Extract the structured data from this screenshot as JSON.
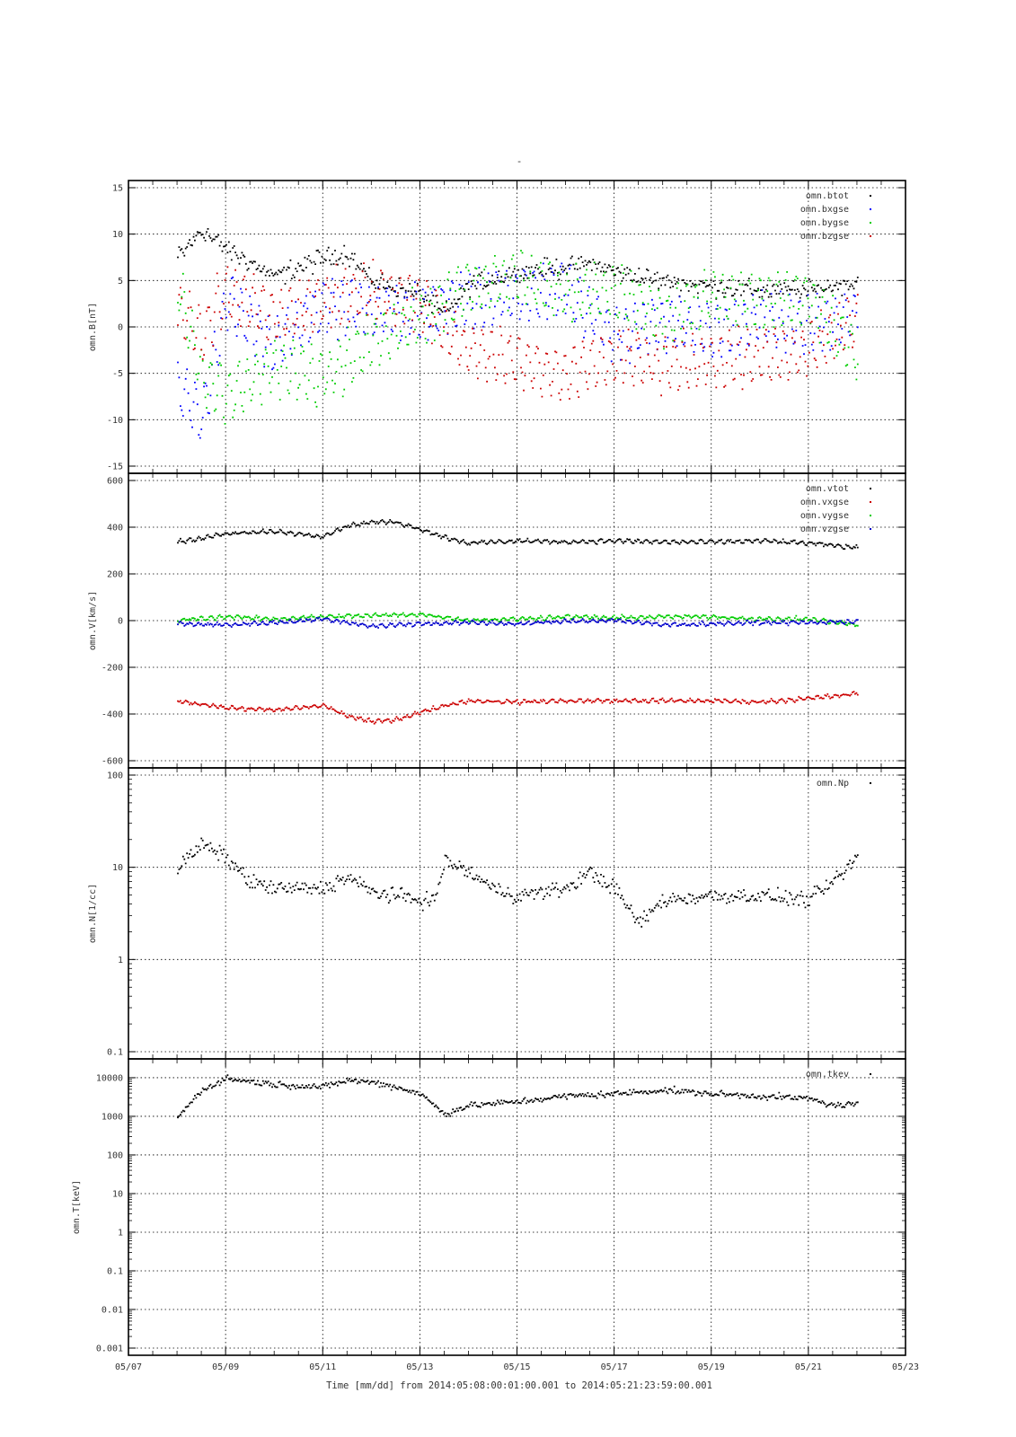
{
  "figure": {
    "top_mark": "-",
    "x_axis_label": "Time [mm/dd]  from 2014:05:08:00:01:00.001  to  2014:05:21:23:59:00.001",
    "x_ticks": [
      "05/07",
      "05/09",
      "05/11",
      "05/13",
      "05/15",
      "05/17",
      "05/19",
      "05/21",
      "05/23"
    ]
  },
  "chart_data": [
    {
      "type": "scatter",
      "ylabel": "omn.B[nT]",
      "ylim": [
        -15,
        15
      ],
      "yscale": "linear",
      "y_ticks": [
        -15,
        -10,
        -5,
        0,
        5,
        10,
        15
      ],
      "y_tick_labels": [
        "-15",
        "-10",
        "-5",
        "0",
        "5",
        "10",
        "15"
      ],
      "xlim": [
        "05/07",
        "05/23"
      ],
      "grid": true,
      "legend_position": "top-right",
      "series": [
        {
          "name": "omn.btot",
          "color": "#000000",
          "points": [
            [
              "05/08",
              7.5
            ],
            [
              "05/08.5",
              10.5
            ],
            [
              "05/09",
              8.5
            ],
            [
              "05/10",
              5.5
            ],
            [
              "05/11",
              7.5
            ],
            [
              "05/11.5",
              8.0
            ],
            [
              "05/12",
              5.0
            ],
            [
              "05/13",
              3.5
            ],
            [
              "05/13.5",
              1.5
            ],
            [
              "05/14",
              4.5
            ],
            [
              "05/15",
              6.0
            ],
            [
              "05/16",
              6.5
            ],
            [
              "05/16.5",
              7.0
            ],
            [
              "05/17",
              6.0
            ],
            [
              "05/18",
              5.0
            ],
            [
              "05/19",
              4.5
            ],
            [
              "05/20",
              4.0
            ],
            [
              "05/21",
              4.0
            ],
            [
              "05/21.5",
              4.5
            ],
            [
              "05/22",
              5.0
            ]
          ]
        },
        {
          "name": "omn.bxgse",
          "color": "#0000ff",
          "points": [
            [
              "05/08",
              -6.0
            ],
            [
              "05/08.5",
              -10.0
            ],
            [
              "05/09",
              3.0
            ],
            [
              "05/10",
              -2.0
            ],
            [
              "05/11",
              2.5
            ],
            [
              "05/12",
              2.0
            ],
            [
              "05/13",
              1.5
            ],
            [
              "05/14",
              3.0
            ],
            [
              "05/15",
              3.5
            ],
            [
              "05/16",
              4.0
            ],
            [
              "05/17",
              -1.0
            ],
            [
              "05/18",
              0.5
            ],
            [
              "05/19",
              -0.5
            ],
            [
              "05/20",
              1.0
            ],
            [
              "05/21",
              0.0
            ],
            [
              "05/22",
              1.5
            ]
          ]
        },
        {
          "name": "omn.bygse",
          "color": "#00cc00",
          "points": [
            [
              "05/08",
              4.5
            ],
            [
              "05/08.5",
              -5.0
            ],
            [
              "05/09",
              -7.5
            ],
            [
              "05/10",
              -4.0
            ],
            [
              "05/11",
              -5.5
            ],
            [
              "05/12",
              -1.5
            ],
            [
              "05/13",
              1.0
            ],
            [
              "05/14",
              4.5
            ],
            [
              "05/15",
              5.5
            ],
            [
              "05/16",
              3.5
            ],
            [
              "05/17",
              4.0
            ],
            [
              "05/18",
              1.0
            ],
            [
              "05/19",
              3.5
            ],
            [
              "05/20",
              3.0
            ],
            [
              "05/21",
              3.0
            ],
            [
              "05/22",
              -3.0
            ]
          ]
        },
        {
          "name": "omn.bzgse",
          "color": "#cc0000",
          "points": [
            [
              "05/08",
              2.0
            ],
            [
              "05/08.5",
              -1.0
            ],
            [
              "05/09",
              4.0
            ],
            [
              "05/10",
              1.0
            ],
            [
              "05/11",
              3.0
            ],
            [
              "05/12",
              4.0
            ],
            [
              "05/13",
              2.5
            ],
            [
              "05/14",
              -2.5
            ],
            [
              "05/15",
              -3.5
            ],
            [
              "05/16",
              -5.0
            ],
            [
              "05/17",
              -3.0
            ],
            [
              "05/18",
              -4.0
            ],
            [
              "05/19",
              -3.5
            ],
            [
              "05/20",
              -3.0
            ],
            [
              "05/21",
              -2.5
            ],
            [
              "05/22",
              1.0
            ]
          ]
        }
      ]
    },
    {
      "type": "scatter",
      "ylabel": "omn.V[km/s]",
      "ylim": [
        -600,
        600
      ],
      "yscale": "linear",
      "y_ticks": [
        -600,
        -400,
        -200,
        0,
        200,
        400,
        600
      ],
      "y_tick_labels": [
        "-600",
        "-400",
        "-200",
        "0",
        "200",
        "400",
        "600"
      ],
      "xlim": [
        "05/07",
        "05/23"
      ],
      "grid": true,
      "legend_position": "top-right",
      "series": [
        {
          "name": "omn.vtot",
          "color": "#000000",
          "points": [
            [
              "05/08",
              340
            ],
            [
              "05/09",
              375
            ],
            [
              "05/10",
              385
            ],
            [
              "05/11",
              365
            ],
            [
              "05/11.5",
              410
            ],
            [
              "05/12",
              425
            ],
            [
              "05/12.5",
              425
            ],
            [
              "05/13",
              395
            ],
            [
              "05/13.5",
              360
            ],
            [
              "05/14",
              335
            ],
            [
              "05/15",
              345
            ],
            [
              "05/16",
              340
            ],
            [
              "05/17",
              345
            ],
            [
              "05/18",
              340
            ],
            [
              "05/19",
              340
            ],
            [
              "05/20",
              345
            ],
            [
              "05/21",
              335
            ],
            [
              "05/22",
              315
            ]
          ]
        },
        {
          "name": "omn.vxgse",
          "color": "#cc0000",
          "points": [
            [
              "05/08",
              -340
            ],
            [
              "05/09",
              -370
            ],
            [
              "05/10",
              -380
            ],
            [
              "05/11",
              -360
            ],
            [
              "05/11.5",
              -405
            ],
            [
              "05/12",
              -430
            ],
            [
              "05/12.5",
              -420
            ],
            [
              "05/13",
              -390
            ],
            [
              "05/13.5",
              -360
            ],
            [
              "05/14",
              -340
            ],
            [
              "05/15",
              -345
            ],
            [
              "05/16",
              -340
            ],
            [
              "05/17",
              -340
            ],
            [
              "05/18",
              -340
            ],
            [
              "05/19",
              -340
            ],
            [
              "05/20",
              -345
            ],
            [
              "05/21",
              -330
            ],
            [
              "05/22",
              -310
            ]
          ]
        },
        {
          "name": "omn.vygse",
          "color": "#00cc00",
          "points": [
            [
              "05/08",
              5
            ],
            [
              "05/09",
              20
            ],
            [
              "05/10",
              10
            ],
            [
              "05/11",
              20
            ],
            [
              "05/12",
              25
            ],
            [
              "05/13",
              30
            ],
            [
              "05/14",
              5
            ],
            [
              "05/15",
              10
            ],
            [
              "05/16",
              20
            ],
            [
              "05/17",
              15
            ],
            [
              "05/18",
              20
            ],
            [
              "05/19",
              20
            ],
            [
              "05/20",
              10
            ],
            [
              "05/21",
              10
            ],
            [
              "05/22",
              -15
            ]
          ]
        },
        {
          "name": "omn.vzgse",
          "color": "#0000cc",
          "points": [
            [
              "05/08",
              -10
            ],
            [
              "05/09",
              -15
            ],
            [
              "05/10",
              -5
            ],
            [
              "05/11",
              10
            ],
            [
              "05/12",
              -20
            ],
            [
              "05/13",
              -10
            ],
            [
              "05/14",
              -5
            ],
            [
              "05/15",
              -10
            ],
            [
              "05/16",
              0
            ],
            [
              "05/17",
              5
            ],
            [
              "05/18",
              -15
            ],
            [
              "05/19",
              -10
            ],
            [
              "05/20",
              -5
            ],
            [
              "05/21",
              -5
            ],
            [
              "05/22",
              0
            ]
          ]
        }
      ]
    },
    {
      "type": "scatter",
      "ylabel": "omn.N[1/cc]",
      "ylim": [
        0.1,
        100
      ],
      "yscale": "log",
      "y_ticks": [
        0.1,
        1,
        10,
        100
      ],
      "y_tick_labels": [
        "0.1",
        "1",
        "10",
        "100"
      ],
      "xlim": [
        "05/07",
        "05/23"
      ],
      "grid": true,
      "legend_position": "top-right",
      "series": [
        {
          "name": "omn.Np",
          "color": "#000000",
          "points": [
            [
              "05/08",
              10
            ],
            [
              "05/08.5",
              18
            ],
            [
              "05/09",
              13
            ],
            [
              "05/09.5",
              7
            ],
            [
              "05/10",
              6
            ],
            [
              "05/11",
              6
            ],
            [
              "05/11.5",
              8
            ],
            [
              "05/12",
              5.5
            ],
            [
              "05/12.5",
              5
            ],
            [
              "05/13",
              4.5
            ],
            [
              "05/13.3",
              4.5
            ],
            [
              "05/13.5",
              12
            ],
            [
              "05/14",
              9
            ],
            [
              "05/14.5",
              6
            ],
            [
              "05/15",
              5
            ],
            [
              "05/16",
              6
            ],
            [
              "05/16.5",
              9
            ],
            [
              "05/17",
              6
            ],
            [
              "05/17.5",
              2.5
            ],
            [
              "05/18",
              4.5
            ],
            [
              "05/19",
              5
            ],
            [
              "05/20",
              5
            ],
            [
              "05/21",
              4.5
            ],
            [
              "05/21.5",
              7
            ],
            [
              "05/22",
              13
            ]
          ]
        }
      ]
    },
    {
      "type": "scatter",
      "ylabel": "omn.T[keV]",
      "ylim": [
        0.001,
        20000
      ],
      "yscale": "log",
      "y_ticks": [
        0.001,
        0.01,
        0.1,
        1,
        10,
        100,
        1000,
        10000
      ],
      "y_tick_labels": [
        "0.001",
        "0.01",
        "0.1",
        "1",
        "10",
        "100",
        "1000",
        "10000"
      ],
      "xlim": [
        "05/07",
        "05/23"
      ],
      "grid": true,
      "legend_position": "top-right",
      "series": [
        {
          "name": "omn.tkev",
          "color": "#000000",
          "points": [
            [
              "05/08",
              1000
            ],
            [
              "05/08.5",
              5000
            ],
            [
              "05/09",
              10000
            ],
            [
              "05/10",
              7000
            ],
            [
              "05/11",
              6000
            ],
            [
              "05/11.5",
              9000
            ],
            [
              "05/12",
              8000
            ],
            [
              "05/12.5",
              6000
            ],
            [
              "05/13",
              4000
            ],
            [
              "05/13.5",
              1200
            ],
            [
              "05/14",
              2000
            ],
            [
              "05/15",
              2500
            ],
            [
              "05/16",
              3500
            ],
            [
              "05/17",
              4000
            ],
            [
              "05/18",
              5000
            ],
            [
              "05/19",
              4000
            ],
            [
              "05/20",
              3500
            ],
            [
              "05/21",
              3000
            ],
            [
              "05/21.5",
              2000
            ],
            [
              "05/22",
              2200
            ]
          ]
        }
      ]
    }
  ]
}
